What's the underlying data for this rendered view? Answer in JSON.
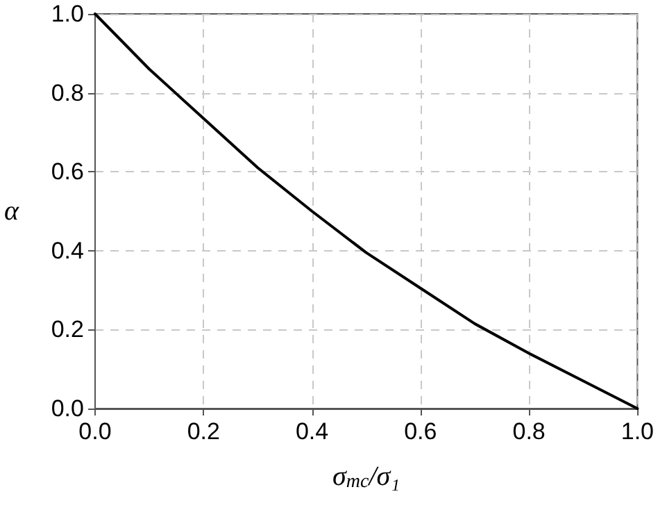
{
  "chart_data": {
    "type": "line",
    "xlabel": "σ$_{mc}$/σ₁",
    "ylabel": "α",
    "x": [
      0,
      0.1,
      0.2,
      0.3,
      0.4,
      0.5,
      0.6,
      0.7,
      0.8,
      0.9,
      1.0
    ],
    "series": [
      {
        "color": "#000000",
        "values": [
          1.0,
          0.86,
          0.735,
          0.61,
          0.5,
          0.395,
          0.305,
          0.215,
          0.14,
          0.07,
          0.0
        ]
      }
    ],
    "xlim": [
      0,
      1
    ],
    "ylim": [
      0,
      1
    ],
    "xticks": [
      {
        "value": 0,
        "label": "0.0"
      },
      0.2,
      0.4,
      0.6,
      0.8,
      {
        "value": 1,
        "label": "1.0"
      }
    ],
    "yticks": [
      {
        "value": 0,
        "label": "0.0"
      },
      0.2,
      0.4,
      0.6,
      0.8,
      {
        "value": 1,
        "label": "1.0"
      }
    ],
    "grid": true,
    "marker": "none",
    "line_style": "solid"
  }
}
